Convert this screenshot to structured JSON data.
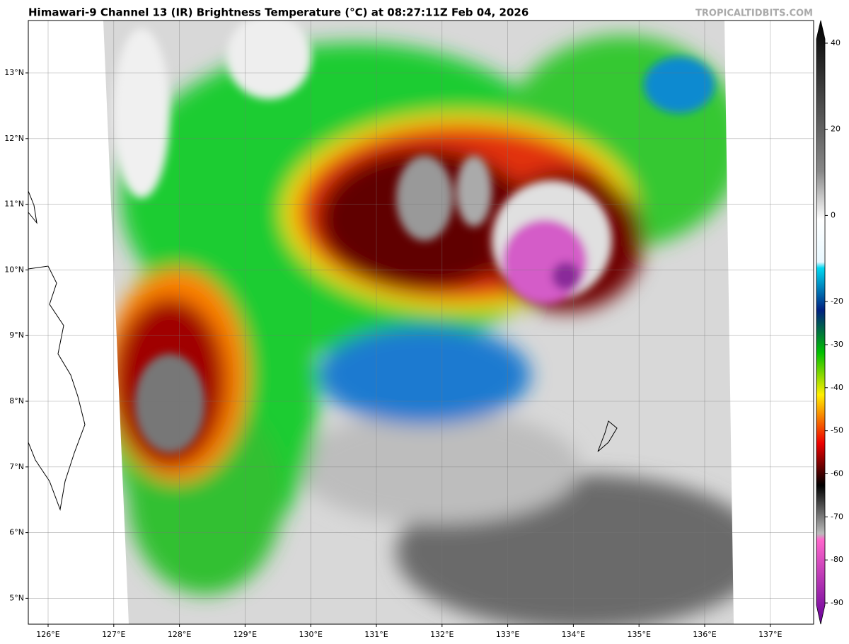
{
  "header": {
    "title": "Himawari-9 Channel 13 (IR) Brightness Temperature (°C) at 08:27:11Z Feb 04, 2026",
    "credit": "TROPICALTIDBITS.COM"
  },
  "map": {
    "lon_ticks": [
      {
        "value": 126,
        "label": "126°E"
      },
      {
        "value": 127,
        "label": "127°E"
      },
      {
        "value": 128,
        "label": "128°E"
      },
      {
        "value": 129,
        "label": "129°E"
      },
      {
        "value": 130,
        "label": "130°E"
      },
      {
        "value": 131,
        "label": "131°E"
      },
      {
        "value": 132,
        "label": "132°E"
      },
      {
        "value": 133,
        "label": "133°E"
      },
      {
        "value": 134,
        "label": "134°E"
      },
      {
        "value": 135,
        "label": "135°E"
      },
      {
        "value": 136,
        "label": "136°E"
      },
      {
        "value": 137,
        "label": "137°E"
      }
    ],
    "lat_ticks": [
      {
        "value": 13,
        "label": "13°N"
      },
      {
        "value": 12,
        "label": "12°N"
      },
      {
        "value": 11,
        "label": "11°N"
      },
      {
        "value": 10,
        "label": "10°N"
      },
      {
        "value": 9,
        "label": "9°N"
      },
      {
        "value": 8,
        "label": "8°N"
      },
      {
        "value": 7,
        "label": "7°N"
      },
      {
        "value": 6,
        "label": "6°N"
      },
      {
        "value": 5,
        "label": "5°N"
      }
    ]
  },
  "colorbar": {
    "ticks": [
      40,
      20,
      0,
      -20,
      -30,
      -40,
      -50,
      -60,
      -70,
      -80,
      -90
    ]
  }
}
